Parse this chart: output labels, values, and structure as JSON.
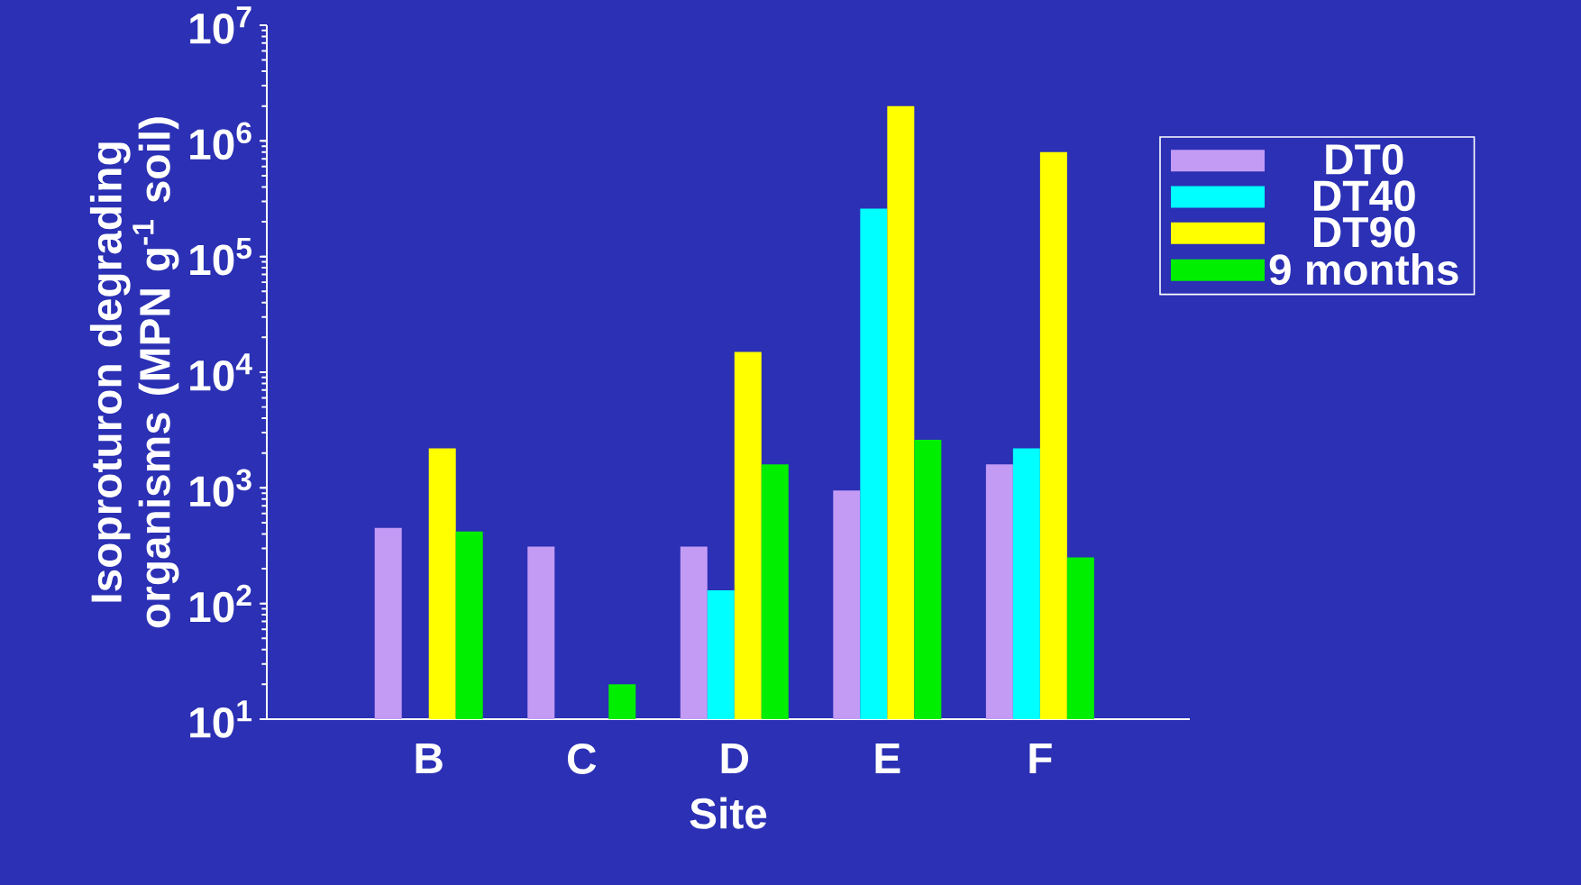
{
  "chart_data": {
    "type": "bar",
    "xlabel": "Site",
    "ylabel": "Isoproturon degrading organisms (MPN g$^{-1}$ soil)",
    "categories": [
      "B",
      "C",
      "D",
      "E",
      "F"
    ],
    "series": [
      {
        "name": "DT0",
        "color": "#c39bf5",
        "values": [
          450,
          310,
          310,
          950,
          1600
        ]
      },
      {
        "name": "DT40",
        "color": "#00ffff",
        "values": [
          null,
          null,
          130,
          260000,
          2200
        ]
      },
      {
        "name": "DT90",
        "color": "#ffff00",
        "values": [
          2200,
          null,
          15000,
          2000000,
          800000
        ]
      },
      {
        "name": "9 months",
        "color": "#00ee00",
        "values": [
          420,
          20,
          1600,
          2600,
          250
        ]
      }
    ],
    "log": true,
    "ylim": [
      10,
      10000000
    ],
    "yticks": [
      {
        "value": 10,
        "label": "10$^{1}$"
      },
      {
        "value": 100,
        "label": "10$^{2}$"
      },
      {
        "value": 1000,
        "label": "10$^{3}$"
      },
      {
        "value": 10000,
        "label": "10$^{4}$"
      },
      {
        "value": 100000,
        "label": "10$^{5}$"
      },
      {
        "value": 1000000,
        "label": "10$^{6}$"
      },
      {
        "value": 10000000,
        "label": "10$^{7}$"
      }
    ],
    "grid": false,
    "legend": "right"
  }
}
